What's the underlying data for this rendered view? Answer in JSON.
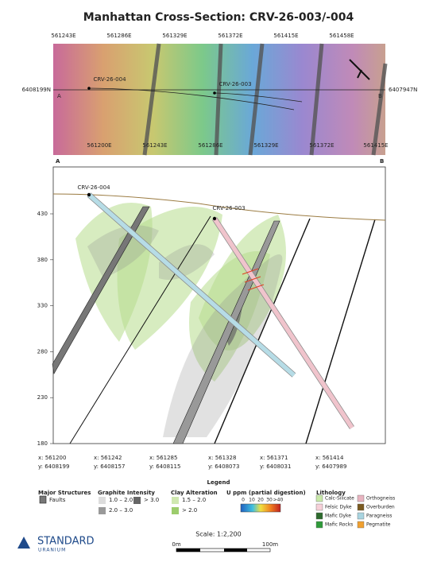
{
  "title": "Manhattan Cross-Section: CRV-26-003/-004",
  "plan_map": {
    "top_eastings": [
      "561243E",
      "561286E",
      "561329E",
      "561372E",
      "561415E",
      "561458E"
    ],
    "bottom_eastings": [
      "561200E",
      "561243E",
      "561286E",
      "561329E",
      "561372E",
      "561415E"
    ],
    "left_northing": "6408199N",
    "right_northing": "6407947N",
    "section_start": "A",
    "section_end": "B",
    "holes": [
      "CRV-26-004",
      "CRV-26-003"
    ]
  },
  "section": {
    "start": "A",
    "end": "B",
    "elevations": [
      "430",
      "380",
      "330",
      "280",
      "230",
      "180"
    ],
    "holes": [
      "CRV-26-004",
      "CRV-26-003"
    ],
    "stations": [
      {
        "x": "x: 561200",
        "y": "y: 6408199"
      },
      {
        "x": "x: 561242",
        "y": "y: 6408157"
      },
      {
        "x": "x: 561285",
        "y": "y: 6408115"
      },
      {
        "x": "x: 561328",
        "y": "y: 6408073"
      },
      {
        "x": "x: 561371",
        "y": "y: 6408031"
      },
      {
        "x": "x: 561414",
        "y": "y: 6407989"
      }
    ]
  },
  "legend": {
    "title": "Legend",
    "major_structures": {
      "title": "Major Structures",
      "items": [
        "Faults"
      ]
    },
    "graphite": {
      "title": "Graphite Intensity",
      "items": [
        "1.0 – 2.0",
        "> 3.0",
        "2.0 – 3.0"
      ]
    },
    "clay": {
      "title": "Clay Alteration",
      "items": [
        "1.5 – 2.0",
        "> 2.0"
      ]
    },
    "uranium": {
      "title": "U ppm (partial digestion)",
      "ticks": [
        "0",
        "10",
        "20",
        "30",
        ">40"
      ]
    },
    "lithology": {
      "title": "Lithology",
      "items": [
        "Calc-Silicate",
        "Orthogneiss",
        "Felsic Dyke",
        "Overburden",
        "Mafic Dyke",
        "Paragneiss",
        "Mafic Rocks",
        "Pegmatite"
      ]
    }
  },
  "scale": {
    "label": "Scale: 1:2,200",
    "start": "0m",
    "end": "100m"
  },
  "logo": {
    "name": "STANDARD",
    "sub": "URANIUM"
  }
}
